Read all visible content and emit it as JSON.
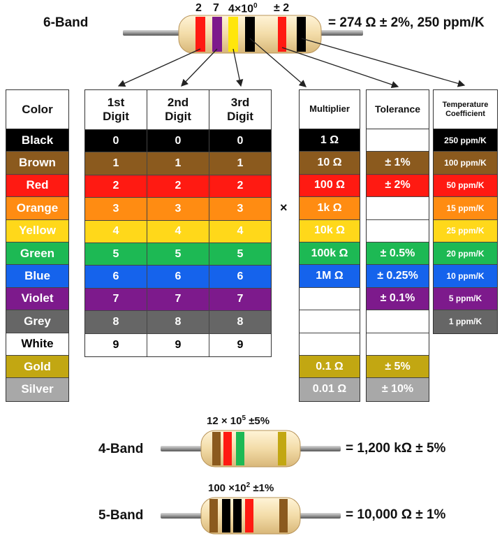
{
  "six_band": {
    "name": "6-Band",
    "codes": [
      "2",
      "7",
      "4×10",
      "0",
      "± 2"
    ],
    "result": "= 274 Ω ± 2%, 250 ppm/K"
  },
  "headers": {
    "color": "Color",
    "d1": [
      "1st",
      "Digit"
    ],
    "d2": [
      "2nd",
      "Digit"
    ],
    "d3": [
      "3rd",
      "Digit"
    ],
    "multiplier": "Multiplier",
    "tolerance": "Tolerance",
    "tempco": [
      "Temperature",
      "Coefficient"
    ]
  },
  "times_symbol": "×",
  "rows": [
    {
      "name": "Black",
      "bg": "#000000",
      "fg": "#ffffff",
      "digit": "0",
      "multiplier": "1 Ω",
      "tolerance": "",
      "tempco": "250 ppm/K"
    },
    {
      "name": "Brown",
      "bg": "#8b5a1e",
      "fg": "#ffffff",
      "digit": "1",
      "multiplier": "10 Ω",
      "tolerance": "± 1%",
      "tempco": "100 ppm/K"
    },
    {
      "name": "Red",
      "bg": "#ff1a12",
      "fg": "#ffffff",
      "digit": "2",
      "multiplier": "100 Ω",
      "tolerance": "± 2%",
      "tempco": "50 ppm/K"
    },
    {
      "name": "Orange",
      "bg": "#ff8c12",
      "fg": "#ffffff",
      "digit": "3",
      "multiplier": "1k Ω",
      "tolerance": "",
      "tempco": "15 ppm/K"
    },
    {
      "name": "Yellow",
      "bg": "#ffd81a",
      "fg": "#ffffff",
      "digit": "4",
      "multiplier": "10k Ω",
      "tolerance": "",
      "tempco": "25 ppm/K"
    },
    {
      "name": "Green",
      "bg": "#1db954",
      "fg": "#ffffff",
      "digit": "5",
      "multiplier": "100k Ω",
      "tolerance": "± 0.5%",
      "tempco": "20 ppm/K"
    },
    {
      "name": "Blue",
      "bg": "#1563ec",
      "fg": "#ffffff",
      "digit": "6",
      "multiplier": "1M Ω",
      "tolerance": "± 0.25%",
      "tempco": "10 ppm/K"
    },
    {
      "name": "Violet",
      "bg": "#7d1a8c",
      "fg": "#ffffff",
      "digit": "7",
      "multiplier": "",
      "tolerance": "± 0.1%",
      "tempco": "5 ppm/K"
    },
    {
      "name": "Grey",
      "bg": "#666666",
      "fg": "#ffffff",
      "digit": "8",
      "multiplier": "",
      "tolerance": "",
      "tempco": "1 ppm/K"
    },
    {
      "name": "White",
      "bg": "#ffffff",
      "fg": "#000000",
      "digit": "9",
      "multiplier": "",
      "tolerance": "",
      "tempco": ""
    },
    {
      "name": "Gold",
      "bg": "#c2a712",
      "fg": "#ffffff",
      "digit": "",
      "multiplier": "0.1 Ω",
      "tolerance": "± 5%",
      "tempco": ""
    },
    {
      "name": "Silver",
      "bg": "#a8a8a8",
      "fg": "#ffffff",
      "digit": "",
      "multiplier": "0.01 Ω",
      "tolerance": "± 10%",
      "tempco": ""
    }
  ],
  "four_band": {
    "name": "4-Band",
    "code": "12 × 10",
    "code_exp": "5",
    "code_tol": " ±5%",
    "result": "= 1,200 kΩ ± 5%"
  },
  "five_band": {
    "name": "5-Band",
    "code": "100 ×10",
    "code_exp": "2",
    "code_tol": " ±1%",
    "result": "= 10,000 Ω ± 1%"
  }
}
